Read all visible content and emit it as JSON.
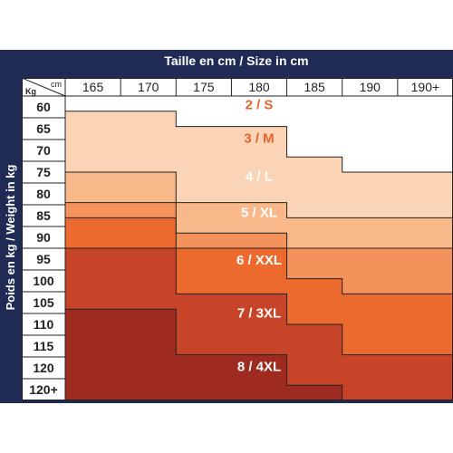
{
  "chart_data": {
    "type": "table",
    "title": "Taille en cm / Size in cm",
    "xlabel": "Taille en cm / Size in cm",
    "ylabel": "Poids en kg / Weight in kg",
    "corner_top": "cm",
    "corner_bottom": "Kg",
    "columns": [
      "165",
      "170",
      "175",
      "180",
      "185",
      "190",
      "190+"
    ],
    "rows": [
      "60",
      "65",
      "70",
      "75",
      "80",
      "85",
      "90",
      "95",
      "100",
      "105",
      "110",
      "115",
      "120",
      "120+"
    ],
    "sizes": [
      {
        "label": "2 / S",
        "color": "#ffffff",
        "text_color": "#e8612c",
        "column_spans_by_column": [
          [
            0,
            1
          ],
          [
            0,
            1
          ],
          [
            0,
            2
          ],
          [
            0,
            2
          ],
          [
            0,
            4
          ],
          [
            0,
            5
          ],
          [
            0,
            5
          ]
        ]
      },
      {
        "label": "3 / M",
        "color": "#fbd4b6",
        "text_color": "#e8612c",
        "column_spans_by_column": [
          [
            1,
            5
          ],
          [
            1,
            5
          ],
          [
            2,
            7
          ],
          [
            2,
            7
          ],
          [
            4,
            8
          ],
          [
            5,
            8
          ],
          [
            5,
            8
          ]
        ]
      },
      {
        "label": "4 / L",
        "color": "#f8b88a",
        "text_color": "#ffffff",
        "column_spans_by_column": [
          [
            5,
            7
          ],
          [
            5,
            7
          ],
          [
            7,
            9
          ],
          [
            7,
            9
          ],
          [
            8,
            10
          ],
          [
            8,
            10
          ],
          [
            8,
            10
          ]
        ]
      },
      {
        "label": "5 / XL",
        "color": "#f4925c",
        "text_color": "#ffffff",
        "column_spans_by_column": [
          [
            7,
            8
          ],
          [
            7,
            8
          ],
          [
            9,
            10
          ],
          [
            9,
            10
          ],
          [
            10,
            12
          ],
          [
            10,
            13
          ],
          [
            10,
            13
          ]
        ]
      },
      {
        "label": "6 / XXL",
        "color": "#ed6a2e",
        "text_color": "#ffffff",
        "column_spans_by_column": [
          [
            8,
            10
          ],
          [
            8,
            10
          ],
          [
            10,
            13
          ],
          [
            10,
            13
          ],
          [
            12,
            15
          ],
          [
            13,
            17
          ],
          [
            13,
            17
          ]
        ]
      },
      {
        "label": "7 / 3XL",
        "color": "#c84428",
        "text_color": "#ffffff",
        "column_spans_by_column": [
          [
            10,
            14
          ],
          [
            10,
            14
          ],
          [
            13,
            17
          ],
          [
            13,
            17
          ],
          [
            15,
            19
          ],
          [
            17,
            20
          ],
          [
            17,
            20
          ]
        ]
      },
      {
        "label": "8 / 4XL",
        "color": "#9d2b20",
        "text_color": "#ffffff",
        "column_spans_by_column": [
          [
            14,
            20
          ],
          [
            14,
            20
          ],
          [
            17,
            20
          ],
          [
            17,
            20
          ],
          [
            19,
            20
          ],
          [
            20,
            20
          ],
          [
            20,
            20
          ]
        ]
      }
    ],
    "grid": true
  }
}
